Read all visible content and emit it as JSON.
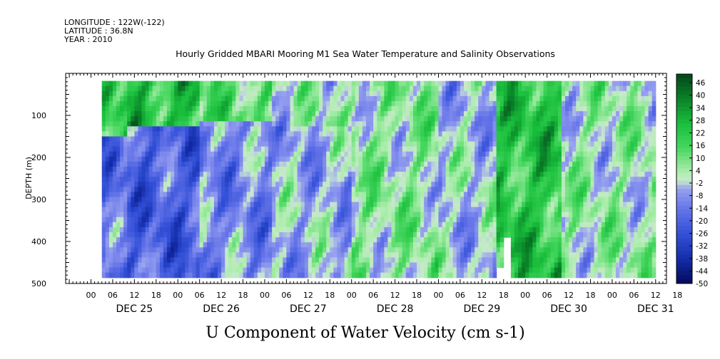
{
  "header": {
    "line1": "LONGITUDE : 122W(-122)",
    "line2": "LATITUDE : 36.8N",
    "line3": "YEAR : 2010"
  },
  "chart_data": {
    "type": "heatmap",
    "title": "Hourly Gridded MBARI Mooring M1 Sea Water Temperature and Salinity Observations",
    "xlabel": "U Component of Water Velocity (cm s-1)",
    "ylabel": "DEPTH (m)",
    "y_range": [
      500,
      0
    ],
    "y_ticks": [
      100,
      200,
      300,
      400,
      500
    ],
    "x_hour_labels": [
      "00",
      "06",
      "12",
      "18",
      "00",
      "06",
      "12",
      "18",
      "00",
      "06",
      "12",
      "18",
      "00",
      "06",
      "12",
      "18",
      "00",
      "06",
      "12",
      "18",
      "00",
      "06",
      "12",
      "18",
      "00",
      "06",
      "12",
      "18"
    ],
    "x_day_labels": [
      "DEC 25",
      "DEC 26",
      "DEC 27",
      "DEC 28",
      "DEC 29",
      "DEC 30",
      "DEC 31"
    ],
    "colorbar_labels": [
      "46",
      "40",
      "34",
      "28",
      "22",
      "16",
      "10",
      "4",
      "-2",
      "-8",
      "-14",
      "-20",
      "-26",
      "-32",
      "-38",
      "-44",
      "-50"
    ],
    "colorbar_range": [
      -50,
      52
    ],
    "grid": false,
    "legend": "right colorbar",
    "colors": {
      "strong_positive": "#0a5a20",
      "positive": "#22cc44",
      "weak": "#c8f0c8",
      "negative": "#7f86e8",
      "strong_negative": "#1a2a9a"
    }
  }
}
